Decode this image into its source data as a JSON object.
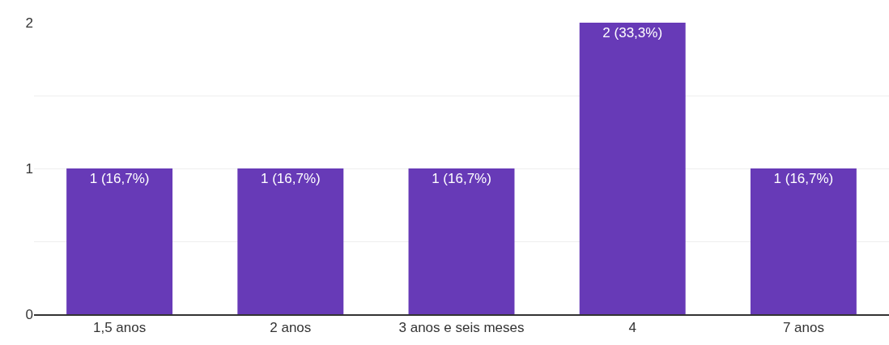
{
  "chart_data": {
    "type": "bar",
    "categories": [
      "1,5 anos",
      "2 anos",
      "3 anos e seis meses",
      "4",
      "7 anos"
    ],
    "values": [
      1,
      1,
      1,
      2,
      1
    ],
    "value_labels": [
      "1 (16,7%)",
      "1 (16,7%)",
      "1 (16,7%)",
      "2 (33,3%)",
      "1 (16,7%)"
    ],
    "color": "#673ab7",
    "ylim": [
      0,
      2
    ],
    "yticks": [
      0,
      {
        "value": 0.5,
        "label": null
      },
      1,
      {
        "value": 1.5,
        "label": null
      },
      2
    ],
    "grid": "y"
  }
}
